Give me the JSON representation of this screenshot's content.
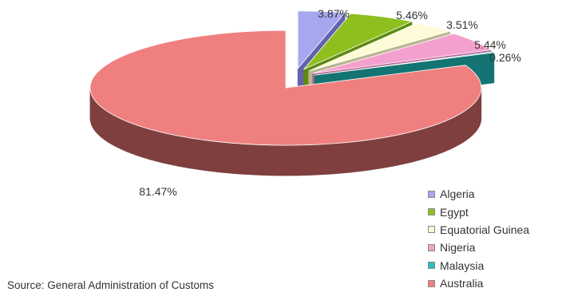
{
  "chart_data": {
    "type": "pie",
    "style": "3d-exploded",
    "slices": [
      {
        "label": "Algeria",
        "value": 3.87,
        "display": "3.87%",
        "color": "#a7a7ef",
        "side": "#6262b0"
      },
      {
        "label": "Egypt",
        "value": 5.46,
        "display": "5.46%",
        "color": "#8fbf1f",
        "side": "#5c8a0f"
      },
      {
        "label": "Equatorial Guinea",
        "value": 3.51,
        "display": "3.51%",
        "color": "#fdfbd7",
        "side": "#b9b58e"
      },
      {
        "label": "Nigeria",
        "value": 5.44,
        "display": "5.44%",
        "color": "#f4a0cf",
        "side": "#b86a95"
      },
      {
        "label": "Malaysia",
        "value": 0.26,
        "display": "0.26%",
        "color": "#2bbdbd",
        "side": "#147474"
      },
      {
        "label": "Australia",
        "value": 81.47,
        "display": "81.47%",
        "color": "#f08080",
        "side": "#7f3f3f"
      }
    ],
    "legend_position": "bottom-right"
  },
  "source": "Source: General Administration of Customs"
}
